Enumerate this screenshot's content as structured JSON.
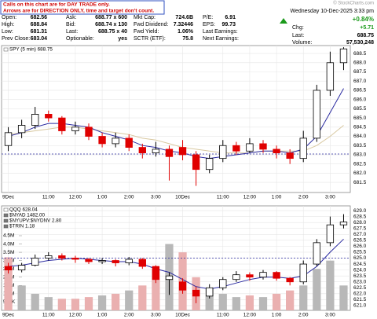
{
  "notice": {
    "lines": [
      "Calls on this chart are for DAY TRADE only.",
      "Arrows are for DIRECTION ONLY, time and target don't count."
    ]
  },
  "watermark": "© StockCharts.com",
  "quote": {
    "cells": [
      {
        "label": "Open:",
        "value": "682.56"
      },
      {
        "label": "High:",
        "value": "688.84"
      },
      {
        "label": "Low:",
        "value": "681.31"
      },
      {
        "label": "Prev Close:",
        "value": "683.04"
      },
      {
        "label": "Ask:",
        "value": "688.77 x 600"
      },
      {
        "label": "Bid:",
        "value": "688.74 x 130"
      },
      {
        "label": "Last:",
        "value": "688.75 x 40"
      },
      {
        "label": "Optionable:",
        "value": "yes"
      },
      {
        "label": "Mkt Cap:",
        "value": "724.6B"
      },
      {
        "label": "Fwd Dividend:",
        "value": "7.32446"
      },
      {
        "label": "Fwd Yield:",
        "value": "1.06%"
      },
      {
        "label": "SCTR (ETF):",
        "value": "75.8"
      },
      {
        "label": "P/E:",
        "value": "6.91"
      },
      {
        "label": "EPS:",
        "value": "99.73"
      },
      {
        "label": "Last Earnings:"
      },
      {
        "label": "Next Earnings:"
      }
    ],
    "timestamp": "Wednesday 10-Dec-2025  3:33 pm",
    "change_pct": "+0.84%",
    "chg_label": "Chg:",
    "chg": "+5.71",
    "last_label": "Last:",
    "last": "688.75",
    "volume_label": "Volume:",
    "volume": "57,530,248"
  },
  "chart_data": [
    {
      "type": "candlestick",
      "legend": [
        "SPY (5 min) 688.75"
      ],
      "x": [
        0,
        1,
        2,
        3,
        4,
        5,
        6,
        7,
        8,
        9,
        10,
        11,
        12,
        13,
        14,
        15,
        16,
        17,
        18,
        19,
        20,
        21,
        22,
        23,
        24,
        25
      ],
      "open": [
        683.5,
        684.2,
        684.6,
        685.2,
        685.0,
        684.3,
        684.5,
        684.0,
        683.6,
        683.9,
        683.4,
        683.1,
        683.3,
        683.4,
        683.0,
        682.2,
        682.8,
        683.5,
        683.2,
        683.6,
        683.3,
        683.1,
        682.8,
        683.9,
        686.5,
        688.0
      ],
      "high": [
        684.5,
        684.9,
        685.6,
        685.4,
        685.1,
        684.8,
        684.7,
        684.2,
        684.2,
        684.1,
        683.6,
        683.7,
        683.5,
        683.8,
        683.2,
        683.0,
        683.8,
        683.7,
        683.9,
        683.8,
        683.5,
        683.3,
        684.3,
        686.8,
        688.6,
        688.84
      ],
      "low": [
        683.2,
        683.9,
        684.4,
        684.8,
        684.1,
        684.1,
        683.8,
        683.4,
        683.4,
        683.2,
        682.8,
        682.9,
        681.6,
        682.7,
        681.31,
        682.0,
        682.6,
        683.0,
        683.1,
        683.1,
        682.8,
        682.5,
        682.6,
        683.7,
        686.2,
        687.6
      ],
      "close": [
        684.2,
        684.6,
        685.2,
        685.0,
        684.3,
        684.5,
        684.0,
        683.6,
        683.9,
        683.4,
        683.1,
        683.3,
        682.9,
        683.0,
        682.2,
        682.8,
        683.5,
        683.2,
        683.6,
        683.3,
        683.1,
        682.8,
        683.9,
        686.5,
        688.0,
        688.75
      ],
      "up_color": "#000000",
      "down_color": "#e00000",
      "overlays": [
        {
          "color": "#d8c8a0",
          "values": [
            684.1,
            684.2,
            684.3,
            684.4,
            684.5,
            684.5,
            684.4,
            684.3,
            684.2,
            684.1,
            683.9,
            683.8,
            683.6,
            683.4,
            683.3,
            683.2,
            683.1,
            683.1,
            683.1,
            683.2,
            683.2,
            683.2,
            683.2,
            683.5,
            684.0,
            684.6
          ]
        },
        {
          "color": "#2a2aa0",
          "values": [
            684.0,
            684.2,
            684.5,
            684.7,
            684.7,
            684.6,
            684.5,
            684.2,
            684.0,
            683.8,
            683.5,
            683.4,
            683.2,
            683.1,
            682.9,
            682.8,
            682.9,
            683.0,
            683.1,
            683.2,
            683.2,
            683.1,
            683.3,
            684.0,
            685.3,
            686.6
          ]
        }
      ],
      "reference_line": 683.04,
      "reference_color": "#2a2aa0",
      "xlim": [
        -0.5,
        25.5
      ],
      "xticks": [
        {
          "value": 0,
          "label": "9Dec"
        },
        {
          "value": 3,
          "label": "11:00"
        },
        {
          "value": 5,
          "label": "12:00"
        },
        {
          "value": 7,
          "label": "1:00"
        },
        {
          "value": 9,
          "label": "2:00"
        },
        {
          "value": 11,
          "label": "3:00"
        },
        {
          "value": 13,
          "label": "10Dec"
        },
        {
          "value": 16,
          "label": "11:00"
        },
        {
          "value": 18,
          "label": "12:00"
        },
        {
          "value": 20,
          "label": "1:00"
        },
        {
          "value": 22,
          "label": "2:00"
        },
        {
          "value": 24,
          "label": "3:00"
        }
      ],
      "ylim": [
        680.95,
        688.93
      ],
      "yticks": [
        681.5,
        {
          "value": 682,
          "label": "682.0"
        },
        682.5,
        {
          "value": 683,
          "label": "683.0"
        },
        683.5,
        {
          "value": 684,
          "label": "684.0"
        },
        684.5,
        {
          "value": 685,
          "label": "685.0"
        },
        685.5,
        {
          "value": 686,
          "label": "686.0"
        },
        686.5,
        {
          "value": 687,
          "label": "687.0"
        },
        687.5,
        {
          "value": 688,
          "label": "688.0"
        },
        688.5
      ],
      "grid": true
    },
    {
      "type": "candlestick",
      "legend": [
        "QQQ 628.04",
        "$NYAD 1482.00",
        "$NYUPV:$NYDNV 2.80",
        "$TRIN 1.18"
      ],
      "x": [
        0,
        1,
        2,
        3,
        4,
        5,
        6,
        7,
        8,
        9,
        10,
        11,
        12,
        13,
        14,
        15,
        16,
        17,
        18,
        19,
        20,
        21,
        22,
        23,
        24,
        25
      ],
      "open": [
        624.3,
        624.0,
        624.4,
        625.0,
        625.2,
        625.0,
        624.9,
        624.7,
        624.8,
        624.6,
        624.9,
        624.3,
        623.2,
        623.0,
        622.3,
        621.8,
        622.5,
        623.2,
        623.6,
        623.4,
        623.8,
        623.3,
        623.0,
        624.5,
        626.3,
        627.8
      ],
      "high": [
        624.6,
        624.6,
        625.3,
        625.5,
        625.4,
        625.2,
        625.0,
        625.0,
        624.9,
        625.1,
        625.0,
        624.4,
        623.8,
        623.3,
        622.6,
        622.8,
        623.4,
        623.9,
        623.8,
        624.0,
        623.9,
        623.4,
        624.8,
        626.6,
        628.5,
        628.7
      ],
      "low": [
        623.7,
        623.8,
        624.3,
        624.8,
        624.8,
        624.6,
        624.5,
        624.5,
        624.3,
        624.4,
        624.1,
        622.9,
        621.9,
        622.0,
        621.2,
        621.6,
        622.3,
        623.0,
        623.1,
        623.2,
        623.1,
        622.7,
        622.8,
        624.3,
        626.0,
        627.5
      ],
      "close": [
        624.0,
        624.4,
        625.0,
        625.2,
        625.0,
        624.9,
        624.7,
        624.8,
        624.6,
        624.9,
        624.3,
        623.2,
        623.5,
        622.3,
        621.8,
        622.5,
        623.2,
        623.6,
        623.4,
        623.8,
        623.3,
        623.0,
        624.5,
        626.3,
        627.8,
        628.04
      ],
      "up_color": "#000000",
      "down_color": "#e00000",
      "overlays": [
        {
          "color": "#2a2aa0",
          "values": [
            624.3,
            624.4,
            624.6,
            624.8,
            624.9,
            625.0,
            624.9,
            624.8,
            624.7,
            624.7,
            624.5,
            624.1,
            623.8,
            623.2,
            622.6,
            622.4,
            622.6,
            622.9,
            623.2,
            623.4,
            623.4,
            623.3,
            623.5,
            624.3,
            625.5,
            626.6
          ]
        }
      ],
      "reference_line": 625.0,
      "reference_color": "#2a2aa0",
      "volume": [
        3200000,
        1500000,
        1000000,
        800000,
        700000,
        700000,
        800000,
        900000,
        1000000,
        1200000,
        1500000,
        2500000,
        4000000,
        3500000,
        2000000,
        1300000,
        1000000,
        800000,
        900000,
        800000,
        1000000,
        1200000,
        1500000,
        2500000,
        3000000,
        1500000
      ],
      "volume_up_color": "#b8b8b8",
      "volume_down_color": "#eab0b0",
      "vlim": [
        0,
        6300000
      ],
      "vticks": [
        {
          "value": 500000,
          "label": "500K"
        },
        {
          "value": 1000000,
          "label": "1.0M"
        },
        {
          "value": 1500000,
          "label": "1.5M"
        },
        {
          "value": 2000000,
          "label": "2.0M"
        },
        {
          "value": 2500000,
          "label": "2.5M"
        },
        {
          "value": 3000000,
          "label": "3.0M"
        },
        {
          "value": 3500000,
          "label": "3.5M"
        },
        {
          "value": 4000000,
          "label": "4.0M"
        },
        {
          "value": 4500000,
          "label": "4.5M"
        }
      ],
      "xlim": [
        -0.5,
        25.5
      ],
      "xticks": [
        {
          "value": 0,
          "label": "9Dec"
        },
        {
          "value": 3,
          "label": "11:00"
        },
        {
          "value": 5,
          "label": "12:00"
        },
        {
          "value": 7,
          "label": "1:00"
        },
        {
          "value": 9,
          "label": "2:00"
        },
        {
          "value": 11,
          "label": "3:00"
        },
        {
          "value": 13,
          "label": "10Dec"
        },
        {
          "value": 16,
          "label": "11:00"
        },
        {
          "value": 18,
          "label": "12:00"
        },
        {
          "value": 20,
          "label": "1:00"
        },
        {
          "value": 22,
          "label": "2:00"
        },
        {
          "value": 24,
          "label": "3:00"
        }
      ],
      "ylim": [
        620.6,
        629.4
      ],
      "yticks": [
        {
          "value": 621,
          "label": "621.0"
        },
        621.5,
        {
          "value": 622,
          "label": "622.0"
        },
        622.5,
        {
          "value": 623,
          "label": "623.0"
        },
        623.5,
        {
          "value": 624,
          "label": "624.0"
        },
        624.5,
        {
          "value": 625,
          "label": "625.0"
        },
        625.5,
        {
          "value": 626,
          "label": "626.0"
        },
        626.5,
        {
          "value": 627,
          "label": "627.0"
        },
        627.5,
        {
          "value": 628,
          "label": "628.0"
        },
        628.5,
        {
          "value": 629,
          "label": "629.0"
        }
      ],
      "grid": true
    }
  ]
}
